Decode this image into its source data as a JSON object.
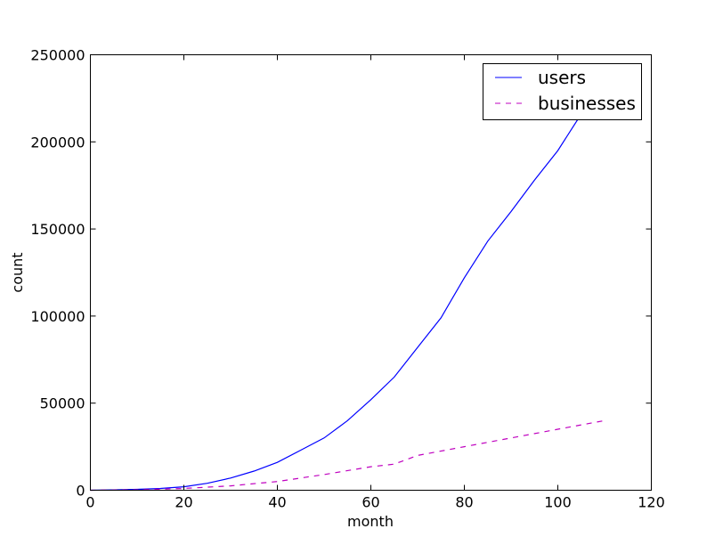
{
  "chart_data": {
    "type": "line",
    "title": "",
    "xlabel": "month",
    "ylabel": "count",
    "xlim": [
      0,
      120
    ],
    "ylim": [
      0,
      250000
    ],
    "x_ticks": [
      0,
      20,
      40,
      60,
      80,
      100,
      120
    ],
    "y_ticks": [
      0,
      50000,
      100000,
      150000,
      200000,
      250000
    ],
    "grid": false,
    "legend_position": "top-right",
    "series": [
      {
        "name": "users",
        "color": "#0000ff",
        "style": "solid",
        "x": [
          0,
          5,
          10,
          15,
          20,
          25,
          30,
          35,
          40,
          45,
          50,
          55,
          60,
          65,
          70,
          75,
          80,
          85,
          90,
          95,
          100,
          105,
          110
        ],
        "y": [
          0,
          200,
          500,
          1000,
          2000,
          4000,
          7000,
          11000,
          16000,
          23000,
          30000,
          40000,
          52000,
          65000,
          82000,
          99000,
          122000,
          143000,
          160000,
          178000,
          195000,
          216000,
          232000
        ]
      },
      {
        "name": "businesses",
        "color": "#bf00bf",
        "style": "dashed",
        "x": [
          0,
          10,
          20,
          30,
          40,
          50,
          60,
          65,
          70,
          80,
          90,
          100,
          110
        ],
        "y": [
          0,
          200,
          1000,
          2500,
          5000,
          9000,
          13500,
          15000,
          20000,
          25000,
          30000,
          35000,
          40000
        ]
      }
    ]
  }
}
